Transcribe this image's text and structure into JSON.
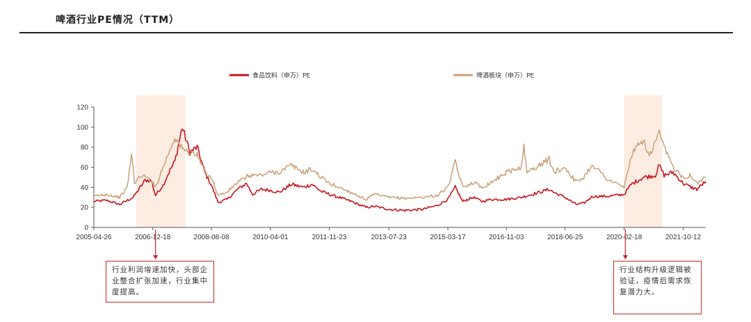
{
  "page": {
    "title": "啤酒行业PE情况（TTM）"
  },
  "chart_data": {
    "type": "line",
    "title": "啤酒行业PE情况（TTM）",
    "xlabel": "",
    "ylabel": "",
    "ylim": [
      0,
      120
    ],
    "yticks": [
      0,
      20,
      40,
      60,
      80,
      100,
      120
    ],
    "xlim": [
      "2005-04-26",
      "2022-05-31"
    ],
    "xtick_labels": [
      "2005-04-26",
      "2006-12-18",
      "2008-08-08",
      "2010-04-01",
      "2011-11-23",
      "2013-07-23",
      "2015-03-17",
      "2016-11-03",
      "2018-06-25",
      "2020-02-18",
      "2021-10-12"
    ],
    "legend": "top",
    "grid": false,
    "series": [
      {
        "name": "食品饮料（申万）PE",
        "color": "#c8141e",
        "points": [
          [
            "2005-04-26",
            26
          ],
          [
            "2005-09-01",
            27
          ],
          [
            "2006-01-15",
            23
          ],
          [
            "2006-06-01",
            30
          ],
          [
            "2006-10-01",
            47
          ],
          [
            "2006-12-01",
            47
          ],
          [
            "2007-01-15",
            32
          ],
          [
            "2007-04-01",
            42
          ],
          [
            "2007-06-01",
            55
          ],
          [
            "2007-08-01",
            66
          ],
          [
            "2007-10-15",
            100
          ],
          [
            "2008-01-01",
            75
          ],
          [
            "2008-03-15",
            80
          ],
          [
            "2008-06-01",
            55
          ],
          [
            "2008-08-08",
            42
          ],
          [
            "2008-10-15",
            25
          ],
          [
            "2009-01-15",
            28
          ],
          [
            "2009-05-01",
            38
          ],
          [
            "2009-08-01",
            44
          ],
          [
            "2009-10-01",
            33
          ],
          [
            "2010-01-01",
            38
          ],
          [
            "2010-04-01",
            37
          ],
          [
            "2010-07-01",
            35
          ],
          [
            "2010-11-01",
            43
          ],
          [
            "2011-03-01",
            40
          ],
          [
            "2011-06-01",
            43
          ],
          [
            "2011-09-01",
            36
          ],
          [
            "2011-11-23",
            33
          ],
          [
            "2012-03-01",
            30
          ],
          [
            "2012-07-01",
            26
          ],
          [
            "2012-12-01",
            20
          ],
          [
            "2013-03-01",
            21
          ],
          [
            "2013-07-23",
            18
          ],
          [
            "2014-01-01",
            17
          ],
          [
            "2014-07-01",
            18
          ],
          [
            "2014-12-01",
            22
          ],
          [
            "2015-03-17",
            28
          ],
          [
            "2015-06-01",
            40
          ],
          [
            "2015-08-15",
            26
          ],
          [
            "2015-12-01",
            30
          ],
          [
            "2016-03-01",
            26
          ],
          [
            "2016-06-01",
            28
          ],
          [
            "2016-11-03",
            28
          ],
          [
            "2017-04-01",
            30
          ],
          [
            "2017-09-01",
            34
          ],
          [
            "2018-01-15",
            38
          ],
          [
            "2018-03-01",
            35
          ],
          [
            "2018-06-25",
            30
          ],
          [
            "2018-10-15",
            23
          ],
          [
            "2019-01-01",
            24
          ],
          [
            "2019-04-01",
            31
          ],
          [
            "2019-09-01",
            31
          ],
          [
            "2020-02-18",
            33
          ],
          [
            "2020-05-01",
            43
          ],
          [
            "2020-09-01",
            50
          ],
          [
            "2021-01-01",
            52
          ],
          [
            "2021-02-10",
            62
          ],
          [
            "2021-04-01",
            52
          ],
          [
            "2021-07-01",
            55
          ],
          [
            "2021-10-12",
            44
          ],
          [
            "2022-01-01",
            40
          ],
          [
            "2022-03-01",
            38
          ],
          [
            "2022-05-31",
            46
          ]
        ]
      },
      {
        "name": "啤酒板块（申万）PE",
        "color": "#c8a078",
        "points": [
          [
            "2005-04-26",
            31
          ],
          [
            "2005-09-01",
            33
          ],
          [
            "2006-01-15",
            30
          ],
          [
            "2006-04-01",
            40
          ],
          [
            "2006-05-15",
            73
          ],
          [
            "2006-06-15",
            45
          ],
          [
            "2006-09-01",
            52
          ],
          [
            "2006-12-01",
            47
          ],
          [
            "2007-01-15",
            40
          ],
          [
            "2007-04-01",
            60
          ],
          [
            "2007-06-01",
            75
          ],
          [
            "2007-08-01",
            90
          ],
          [
            "2007-10-15",
            78
          ],
          [
            "2008-01-01",
            75
          ],
          [
            "2008-03-15",
            72
          ],
          [
            "2008-06-01",
            55
          ],
          [
            "2008-08-08",
            50
          ],
          [
            "2008-10-15",
            32
          ],
          [
            "2009-01-15",
            35
          ],
          [
            "2009-05-01",
            45
          ],
          [
            "2009-09-01",
            52
          ],
          [
            "2010-01-01",
            52
          ],
          [
            "2010-04-01",
            55
          ],
          [
            "2010-07-01",
            55
          ],
          [
            "2010-11-01",
            62
          ],
          [
            "2011-03-01",
            55
          ],
          [
            "2011-06-01",
            58
          ],
          [
            "2011-09-01",
            50
          ],
          [
            "2011-11-23",
            44
          ],
          [
            "2012-03-01",
            40
          ],
          [
            "2012-07-01",
            35
          ],
          [
            "2012-12-01",
            28
          ],
          [
            "2013-03-01",
            33
          ],
          [
            "2013-07-23",
            30
          ],
          [
            "2014-01-01",
            29
          ],
          [
            "2014-07-01",
            30
          ],
          [
            "2014-12-01",
            32
          ],
          [
            "2015-03-17",
            40
          ],
          [
            "2015-06-01",
            65
          ],
          [
            "2015-08-15",
            40
          ],
          [
            "2015-12-01",
            45
          ],
          [
            "2016-03-01",
            40
          ],
          [
            "2016-06-01",
            45
          ],
          [
            "2016-11-03",
            55
          ],
          [
            "2017-04-01",
            60
          ],
          [
            "2017-05-01",
            80
          ],
          [
            "2017-06-01",
            55
          ],
          [
            "2017-09-01",
            60
          ],
          [
            "2018-01-15",
            68
          ],
          [
            "2018-03-01",
            55
          ],
          [
            "2018-06-25",
            60
          ],
          [
            "2018-10-15",
            45
          ],
          [
            "2019-01-01",
            50
          ],
          [
            "2019-04-01",
            63
          ],
          [
            "2019-09-01",
            48
          ],
          [
            "2020-02-18",
            40
          ],
          [
            "2020-05-01",
            72
          ],
          [
            "2020-09-01",
            88
          ],
          [
            "2020-11-01",
            70
          ],
          [
            "2021-01-01",
            85
          ],
          [
            "2021-02-10",
            93
          ],
          [
            "2021-04-01",
            80
          ],
          [
            "2021-07-01",
            60
          ],
          [
            "2021-10-12",
            50
          ],
          [
            "2022-01-01",
            52
          ],
          [
            "2022-03-01",
            44
          ],
          [
            "2022-05-31",
            50
          ]
        ]
      }
    ],
    "highlight_periods": [
      {
        "start": "2006-07-01",
        "end": "2007-11-15",
        "note": "行业利润增速加快，头部企业整合扩张加速，行业集中度提高。",
        "arrow_date": "2007-01-15"
      },
      {
        "start": "2020-02-15",
        "end": "2021-03-10",
        "note": "行业结构升级逻辑被验证，疫情后需求恢复潜力大。",
        "arrow_date": "2020-03-01"
      }
    ]
  }
}
